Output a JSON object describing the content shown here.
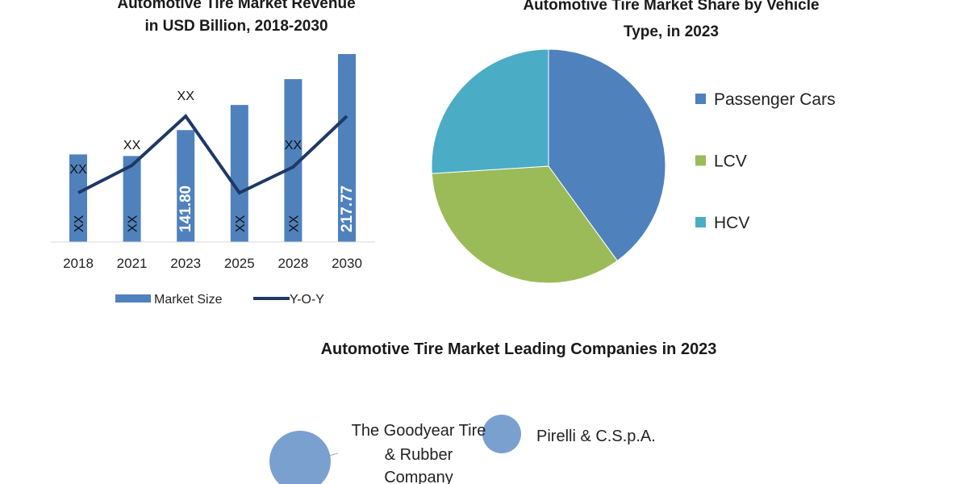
{
  "chart_data": [
    {
      "type": "bar",
      "title_lines": [
        "Automotive Tire Market Revenue",
        "in USD Billion, 2018-2030"
      ],
      "categories": [
        "2018",
        "2021",
        "2023",
        "2025",
        "2028",
        "2030"
      ],
      "series": [
        {
          "name": "Market Size",
          "kind": "bar",
          "color": "#4f81bd",
          "values": [
            117.5,
            115.9,
            141.8,
            166.9,
            192.7,
            217.77
          ],
          "labels": [
            "XX",
            "XX",
            "141.80",
            "XX",
            "XX",
            "217.77"
          ]
        },
        {
          "name": "Y-O-Y",
          "kind": "line",
          "color": "#1f3864",
          "values_relative": [
            61,
            95,
            156,
            61,
            93,
            156
          ],
          "labels": [
            "XX",
            "XX",
            "XX",
            "",
            "XX",
            ""
          ]
        }
      ],
      "ylim": [
        30,
        230
      ],
      "legend": "bottom",
      "grid": false
    },
    {
      "type": "pie",
      "title_lines": [
        "Automotive Tire  Market Share by Vehicle",
        "Type, in 2023"
      ],
      "categories": [
        "Passenger Cars",
        "LCV",
        "HCV"
      ],
      "values": [
        40,
        34,
        26
      ],
      "colors": [
        "#4f81bd",
        "#9bbb59",
        "#4bacc6"
      ],
      "legend": "right"
    },
    {
      "type": "scatter",
      "title": "Automotive Tire Market Leading Companies in 2023",
      "points": [
        {
          "name_lines": [
            "The Goodyear Tire",
            "& Rubber",
            "Company"
          ],
          "size": 38
        },
        {
          "name_lines": [
            "Pirelli & C.S.p.A."
          ],
          "size": 24
        }
      ],
      "color": "#7aa0d0"
    }
  ]
}
